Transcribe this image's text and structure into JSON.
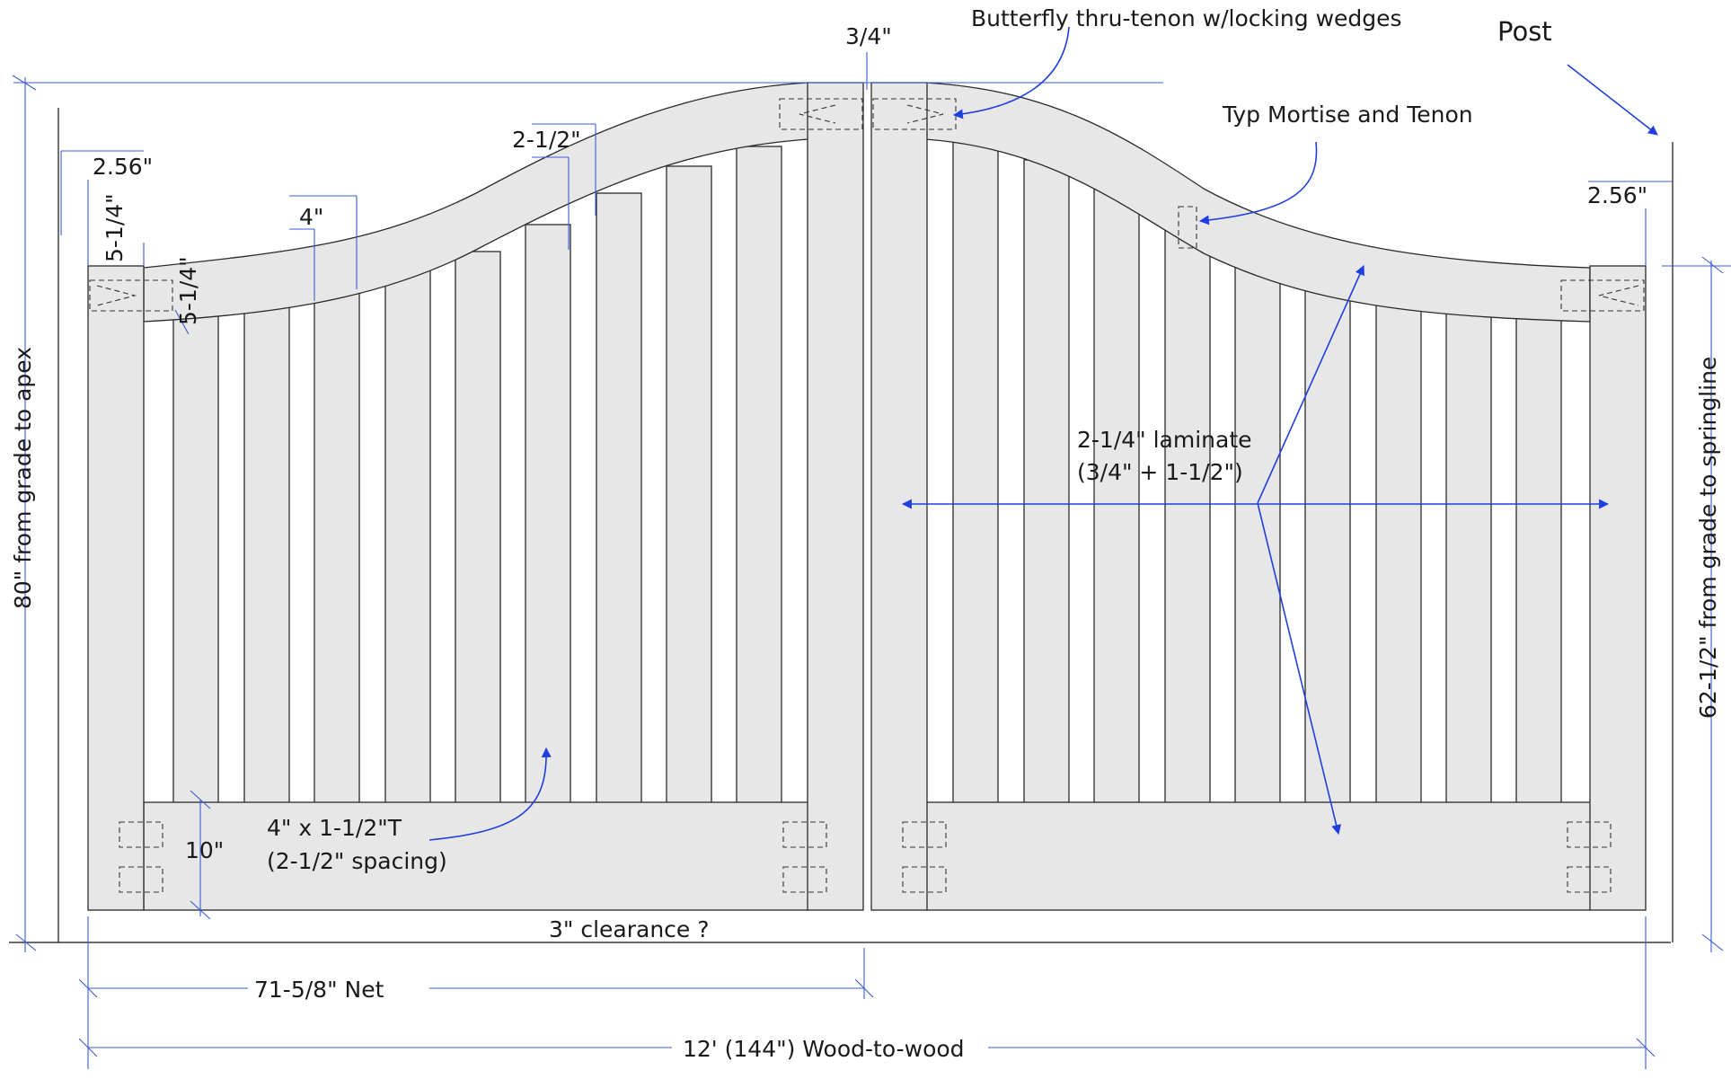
{
  "colors": {
    "wood": "#e7e7e7",
    "outline": "#2a2a2a",
    "dimension": "#3a5bd8",
    "arrow": "#1f3fe0",
    "ground": "#111111"
  },
  "labels": {
    "top_gap": "3/4\"",
    "butterfly": "Butterfly thru-tenon w/locking wedges",
    "post": "Post",
    "mortise": "Typ Mortise and Tenon",
    "left_stile_width": "2.56\"",
    "right_stile_width": "2.56\"",
    "stile_tenon_a": "5-1/4\"",
    "stile_tenon_b": "5-1/4\"",
    "rail_width": "2-1/2\"",
    "picket_width_top": "4\"",
    "laminate_line1": "2-1/4\" laminate",
    "laminate_line2": "(3/4\" + 1-1/2\")",
    "picket_line1": "4\" x 1-1/2\"T",
    "picket_line2": "(2-1/2\" spacing)",
    "bottom_rail": "10\"",
    "clearance": "3\" clearance ?",
    "net_width": "71-5/8\" Net",
    "overall_width": "12' (144\") Wood-to-wood",
    "apex_height": "80\" from grade to apex",
    "springline_height": "62-1/2\" from grade to springline"
  }
}
